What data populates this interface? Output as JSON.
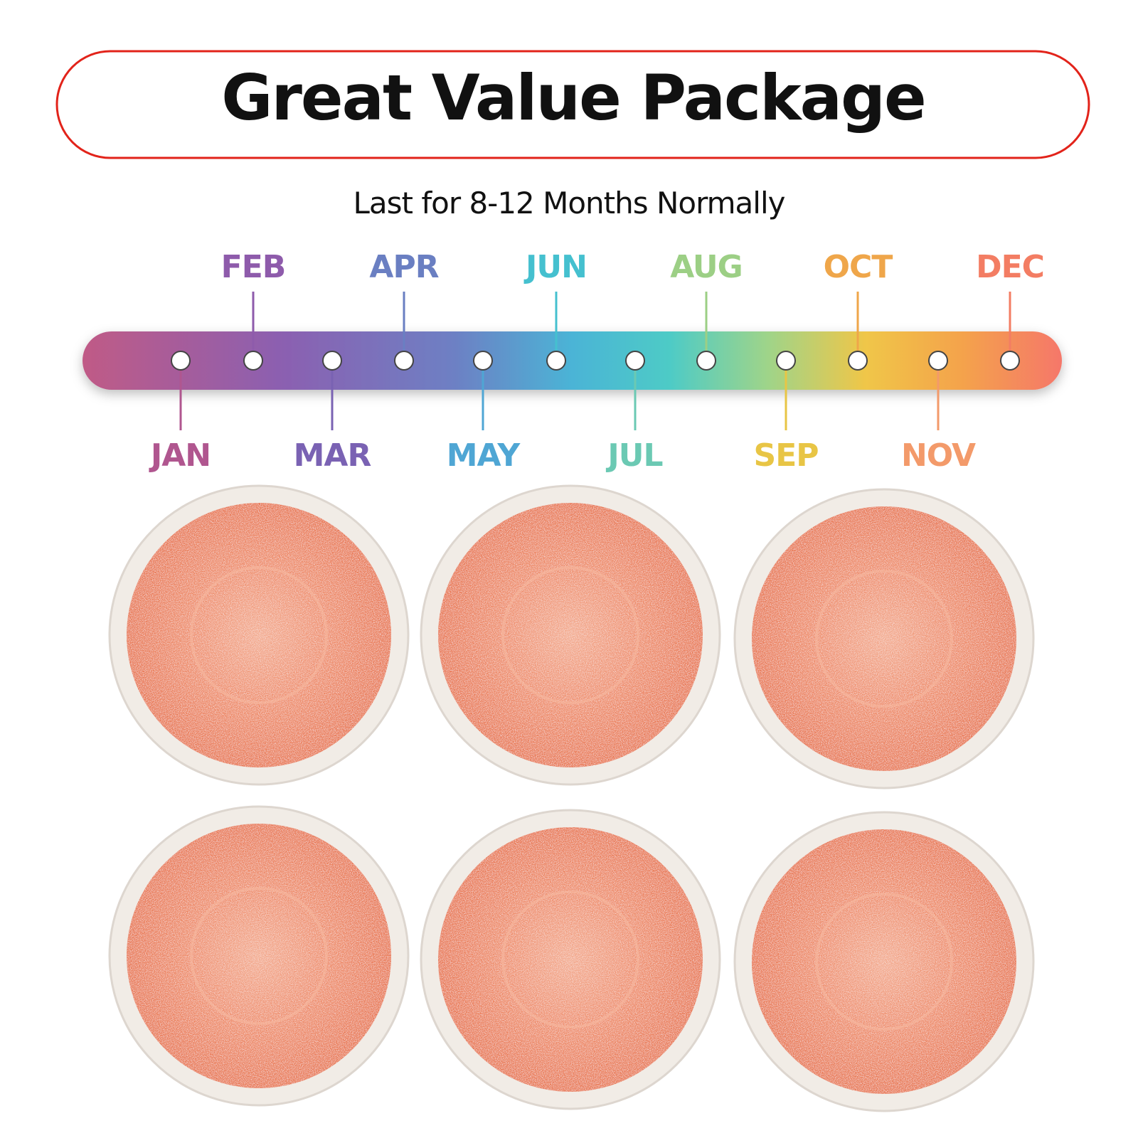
{
  "header": {
    "title": "Great Value Package",
    "subtitle": "Last for 8-12 Months Normally"
  },
  "timeline": {
    "months": [
      "JAN",
      "FEB",
      "MAR",
      "APR",
      "MAY",
      "JUN",
      "JUL",
      "AUG",
      "SEP",
      "OCT",
      "NOV",
      "DEC"
    ]
  }
}
